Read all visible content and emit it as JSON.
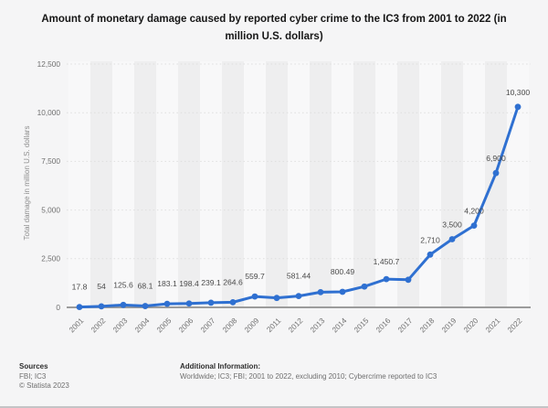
{
  "title": "Amount of monetary damage caused by reported cyber crime to the IC3 from 2001 to 2022 (in million U.S. dollars)",
  "chart_data": {
    "type": "line",
    "categories": [
      "2001",
      "2002",
      "2003",
      "2004",
      "2005",
      "2006",
      "2007",
      "2008",
      "2009",
      "2011",
      "2012",
      "2013",
      "2014",
      "2015",
      "2016",
      "2017",
      "2018",
      "2019",
      "2020",
      "2021",
      "2022"
    ],
    "values": [
      17.8,
      54,
      125.6,
      68.1,
      183.1,
      198.4,
      239.1,
      264.6,
      559.7,
      485.3,
      581.44,
      781.84,
      800.49,
      1070.71,
      1450.7,
      1418.7,
      2710,
      3500,
      4200,
      6900,
      10300
    ],
    "point_labels": [
      "17.8",
      "54",
      "125.6",
      "68.1",
      "183.1",
      "198.4",
      "239.1",
      "264.6",
      "559.7",
      null,
      "581.44",
      null,
      "800.49",
      null,
      "1,450.7",
      null,
      "2,710",
      "3,500",
      "4,200",
      "6,900",
      "10,300"
    ],
    "title": "Amount of monetary damage caused by reported cyber crime to the IC3 from 2001 to 2022 (in million U.S. dollars)",
    "xlabel": "",
    "ylabel": "Total damage in million U.S. dollars",
    "ylim": [
      0,
      12500
    ],
    "y_tick_values": [
      0,
      2500,
      5000,
      7500,
      10000,
      12500
    ],
    "y_tick_labels": [
      "0",
      "2,500",
      "5,000",
      "7,500",
      "10,000",
      "12,500"
    ],
    "grid": "horizontal-dotted",
    "legend": "none",
    "note": "2010 excluded from x-axis",
    "colors": {
      "line": "#2f70d1",
      "stripe_dark": "#eeeeef",
      "stripe_light": "#f8f8f9",
      "gridline": "#dedede",
      "axis_line": "#8f8f8f",
      "tick_text": "#6f6f6f",
      "point_label_text": "#4a4a4a",
      "background": "#f5f5f6"
    }
  },
  "footer": {
    "sources_heading": "Sources",
    "sources_line1": "FBI; IC3",
    "sources_line2": "© Statista 2023",
    "additional_heading": "Additional Information:",
    "additional_text": "Worldwide; IC3; FBI; 2001 to 2022, excluding 2010; Cybercrime reported to IC3"
  }
}
